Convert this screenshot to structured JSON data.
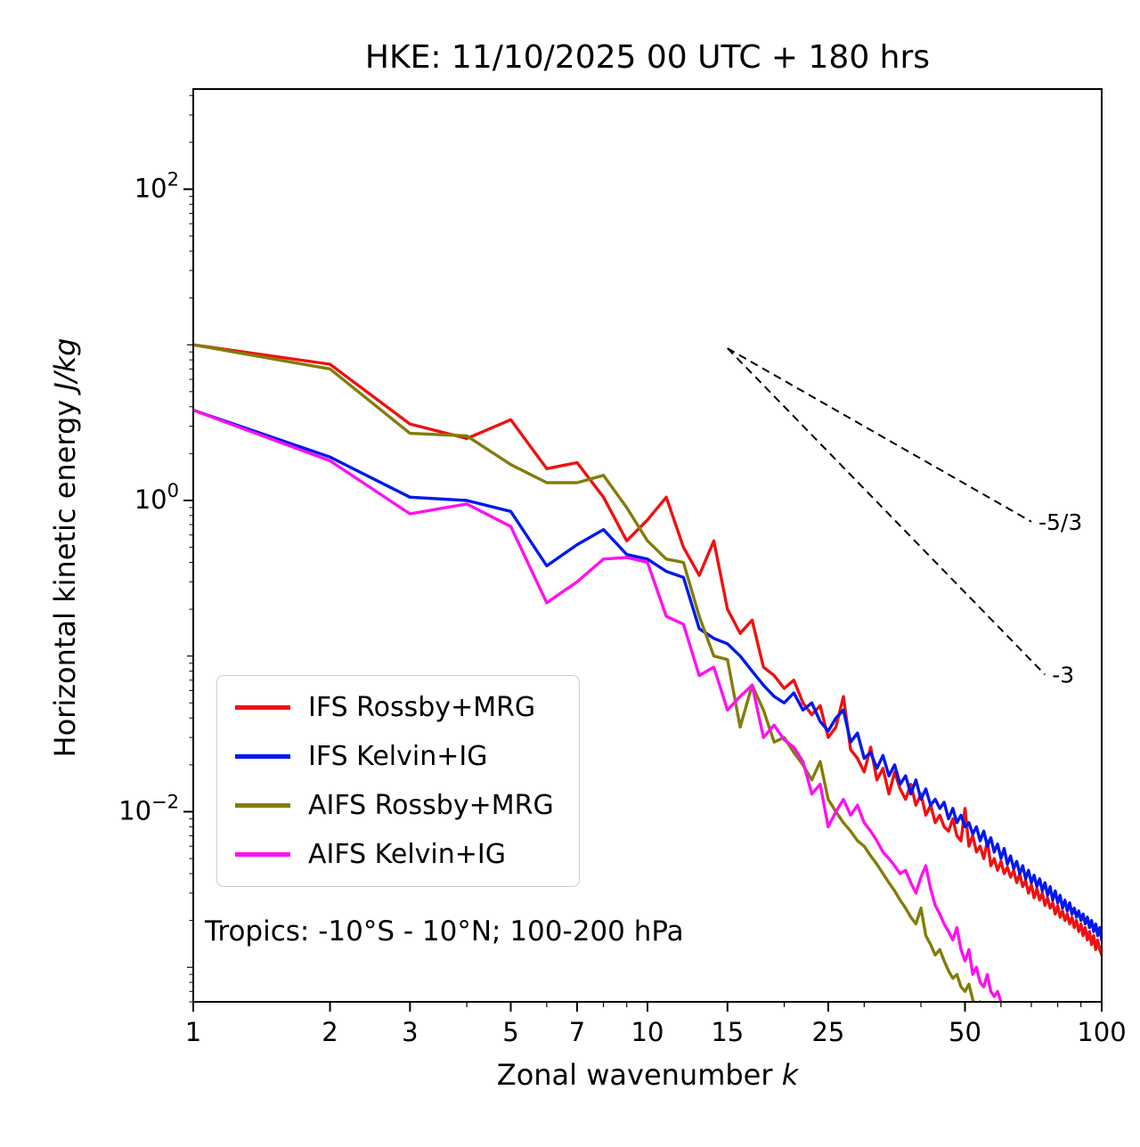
{
  "title": "HKE: 11/10/2025 00 UTC + 180 hrs",
  "x_axis": {
    "label_main": "Zonal wavenumber ",
    "label_italic": "k",
    "tick_values": [
      1,
      2,
      3,
      5,
      7,
      10,
      15,
      25,
      50,
      100
    ],
    "tick_labels": [
      "1",
      "2",
      "3",
      "5",
      "7",
      "10",
      "15",
      "25",
      "50",
      "100"
    ]
  },
  "y_axis": {
    "label_main": "Horizontal kinetic energy ",
    "label_italic": "J/kg",
    "tick_exponents": [
      2,
      0,
      -2
    ]
  },
  "annotation": "Tropics: -10°S - 10°N; 100-200 hPa",
  "chart_data": {
    "type": "line",
    "x_scale": "log",
    "y_scale": "log",
    "xlim": [
      1,
      100
    ],
    "ylim": [
      0.0006,
      440
    ],
    "grid": false,
    "legend_position": "lower left",
    "k_start": 1,
    "k_step": 1,
    "xlabel": "Zonal wavenumber k",
    "ylabel": "Horizontal kinetic energy J/kg",
    "ref_lines": [
      {
        "from": [
          15,
          9.5
        ],
        "to": [
          70,
          0.73
        ],
        "label": "-5/3",
        "slope": "-5/3"
      },
      {
        "from": [
          15,
          9.5
        ],
        "to": [
          75,
          0.076
        ],
        "label": "-3",
        "slope": "-3"
      }
    ],
    "series": [
      {
        "name": "IFS Rossby+MRG",
        "color": "#f01010",
        "values": [
          10.0,
          7.5,
          3.1,
          2.5,
          3.3,
          1.6,
          1.75,
          1.05,
          0.55,
          0.75,
          1.05,
          0.5,
          0.33,
          0.55,
          0.2,
          0.14,
          0.17,
          0.085,
          0.075,
          0.062,
          0.07,
          0.05,
          0.042,
          0.048,
          0.03,
          0.035,
          0.055,
          0.025,
          0.022,
          0.018,
          0.026,
          0.016,
          0.019,
          0.013,
          0.018,
          0.014,
          0.012,
          0.015,
          0.011,
          0.013,
          0.0095,
          0.011,
          0.0085,
          0.0095,
          0.008,
          0.0075,
          0.009,
          0.007,
          0.0065,
          0.0105,
          0.006,
          0.007,
          0.0055,
          0.006,
          0.005,
          0.0065,
          0.0045,
          0.005,
          0.0042,
          0.0048,
          0.004,
          0.0044,
          0.0038,
          0.0042,
          0.0035,
          0.004,
          0.0033,
          0.0036,
          0.003,
          0.0034,
          0.0028,
          0.0032,
          0.0027,
          0.003,
          0.0025,
          0.0028,
          0.0024,
          0.0026,
          0.0022,
          0.0025,
          0.0021,
          0.0023,
          0.002,
          0.0022,
          0.0019,
          0.0021,
          0.0018,
          0.002,
          0.0017,
          0.0019,
          0.0016,
          0.0018,
          0.0015,
          0.0017,
          0.0014,
          0.0016,
          0.0013,
          0.0015,
          0.0013,
          0.0012
        ]
      },
      {
        "name": "IFS Kelvin+IG",
        "color": "#0018ee",
        "values": [
          3.8,
          1.9,
          1.05,
          1.0,
          0.85,
          0.38,
          0.52,
          0.65,
          0.45,
          0.42,
          0.35,
          0.32,
          0.15,
          0.13,
          0.12,
          0.1,
          0.08,
          0.065,
          0.055,
          0.05,
          0.058,
          0.045,
          0.05,
          0.038,
          0.033,
          0.04,
          0.045,
          0.028,
          0.032,
          0.022,
          0.024,
          0.019,
          0.023,
          0.017,
          0.02,
          0.015,
          0.017,
          0.013,
          0.016,
          0.012,
          0.014,
          0.011,
          0.012,
          0.0105,
          0.0115,
          0.009,
          0.0105,
          0.0085,
          0.0095,
          0.008,
          0.0085,
          0.0072,
          0.008,
          0.0065,
          0.0075,
          0.006,
          0.0068,
          0.0055,
          0.0062,
          0.005,
          0.0058,
          0.0046,
          0.0052,
          0.0043,
          0.0048,
          0.004,
          0.0045,
          0.0037,
          0.0042,
          0.0035,
          0.0039,
          0.0033,
          0.0037,
          0.0031,
          0.0035,
          0.0029,
          0.0033,
          0.0027,
          0.0031,
          0.0026,
          0.0029,
          0.0024,
          0.0027,
          0.0023,
          0.0026,
          0.0022,
          0.0024,
          0.0021,
          0.0023,
          0.002,
          0.0022,
          0.0019,
          0.0021,
          0.0018,
          0.002,
          0.0017,
          0.0019,
          0.0016,
          0.0018,
          0.0015
        ]
      },
      {
        "name": "AIFS Rossby+MRG",
        "color": "#827d0a",
        "values": [
          10.0,
          7.0,
          2.7,
          2.6,
          1.7,
          1.3,
          1.3,
          1.45,
          0.9,
          0.55,
          0.42,
          0.4,
          0.18,
          0.1,
          0.095,
          0.035,
          0.065,
          0.045,
          0.028,
          0.03,
          0.024,
          0.02,
          0.016,
          0.021,
          0.012,
          0.01,
          0.0085,
          0.0075,
          0.0065,
          0.006,
          0.0052,
          0.0046,
          0.004,
          0.0035,
          0.0031,
          0.0027,
          0.0024,
          0.0021,
          0.0019,
          0.0024,
          0.0016,
          0.0014,
          0.0012,
          0.0013,
          0.0011,
          0.00095,
          0.00085,
          0.0009,
          0.00075,
          0.0007,
          0.00078,
          0.00062,
          0.00055,
          0.0006,
          0.0005,
          0.00045,
          0.0005,
          0.0004
        ]
      },
      {
        "name": "AIFS Kelvin+IG",
        "color": "#ff10f0",
        "values": [
          3.8,
          1.8,
          0.82,
          0.95,
          0.68,
          0.22,
          0.3,
          0.42,
          0.43,
          0.4,
          0.18,
          0.16,
          0.075,
          0.085,
          0.045,
          0.055,
          0.065,
          0.03,
          0.036,
          0.029,
          0.026,
          0.021,
          0.013,
          0.015,
          0.008,
          0.01,
          0.012,
          0.0095,
          0.011,
          0.0085,
          0.0075,
          0.0065,
          0.0055,
          0.005,
          0.0045,
          0.004,
          0.0042,
          0.0035,
          0.003,
          0.0038,
          0.0045,
          0.0032,
          0.0025,
          0.0022,
          0.0019,
          0.0017,
          0.0015,
          0.0018,
          0.0013,
          0.0011,
          0.0013,
          0.0009,
          0.001,
          0.0008,
          0.00075,
          0.0009,
          0.0007,
          0.00065,
          0.0007,
          0.0006,
          0.00055,
          0.0005
        ]
      }
    ]
  }
}
